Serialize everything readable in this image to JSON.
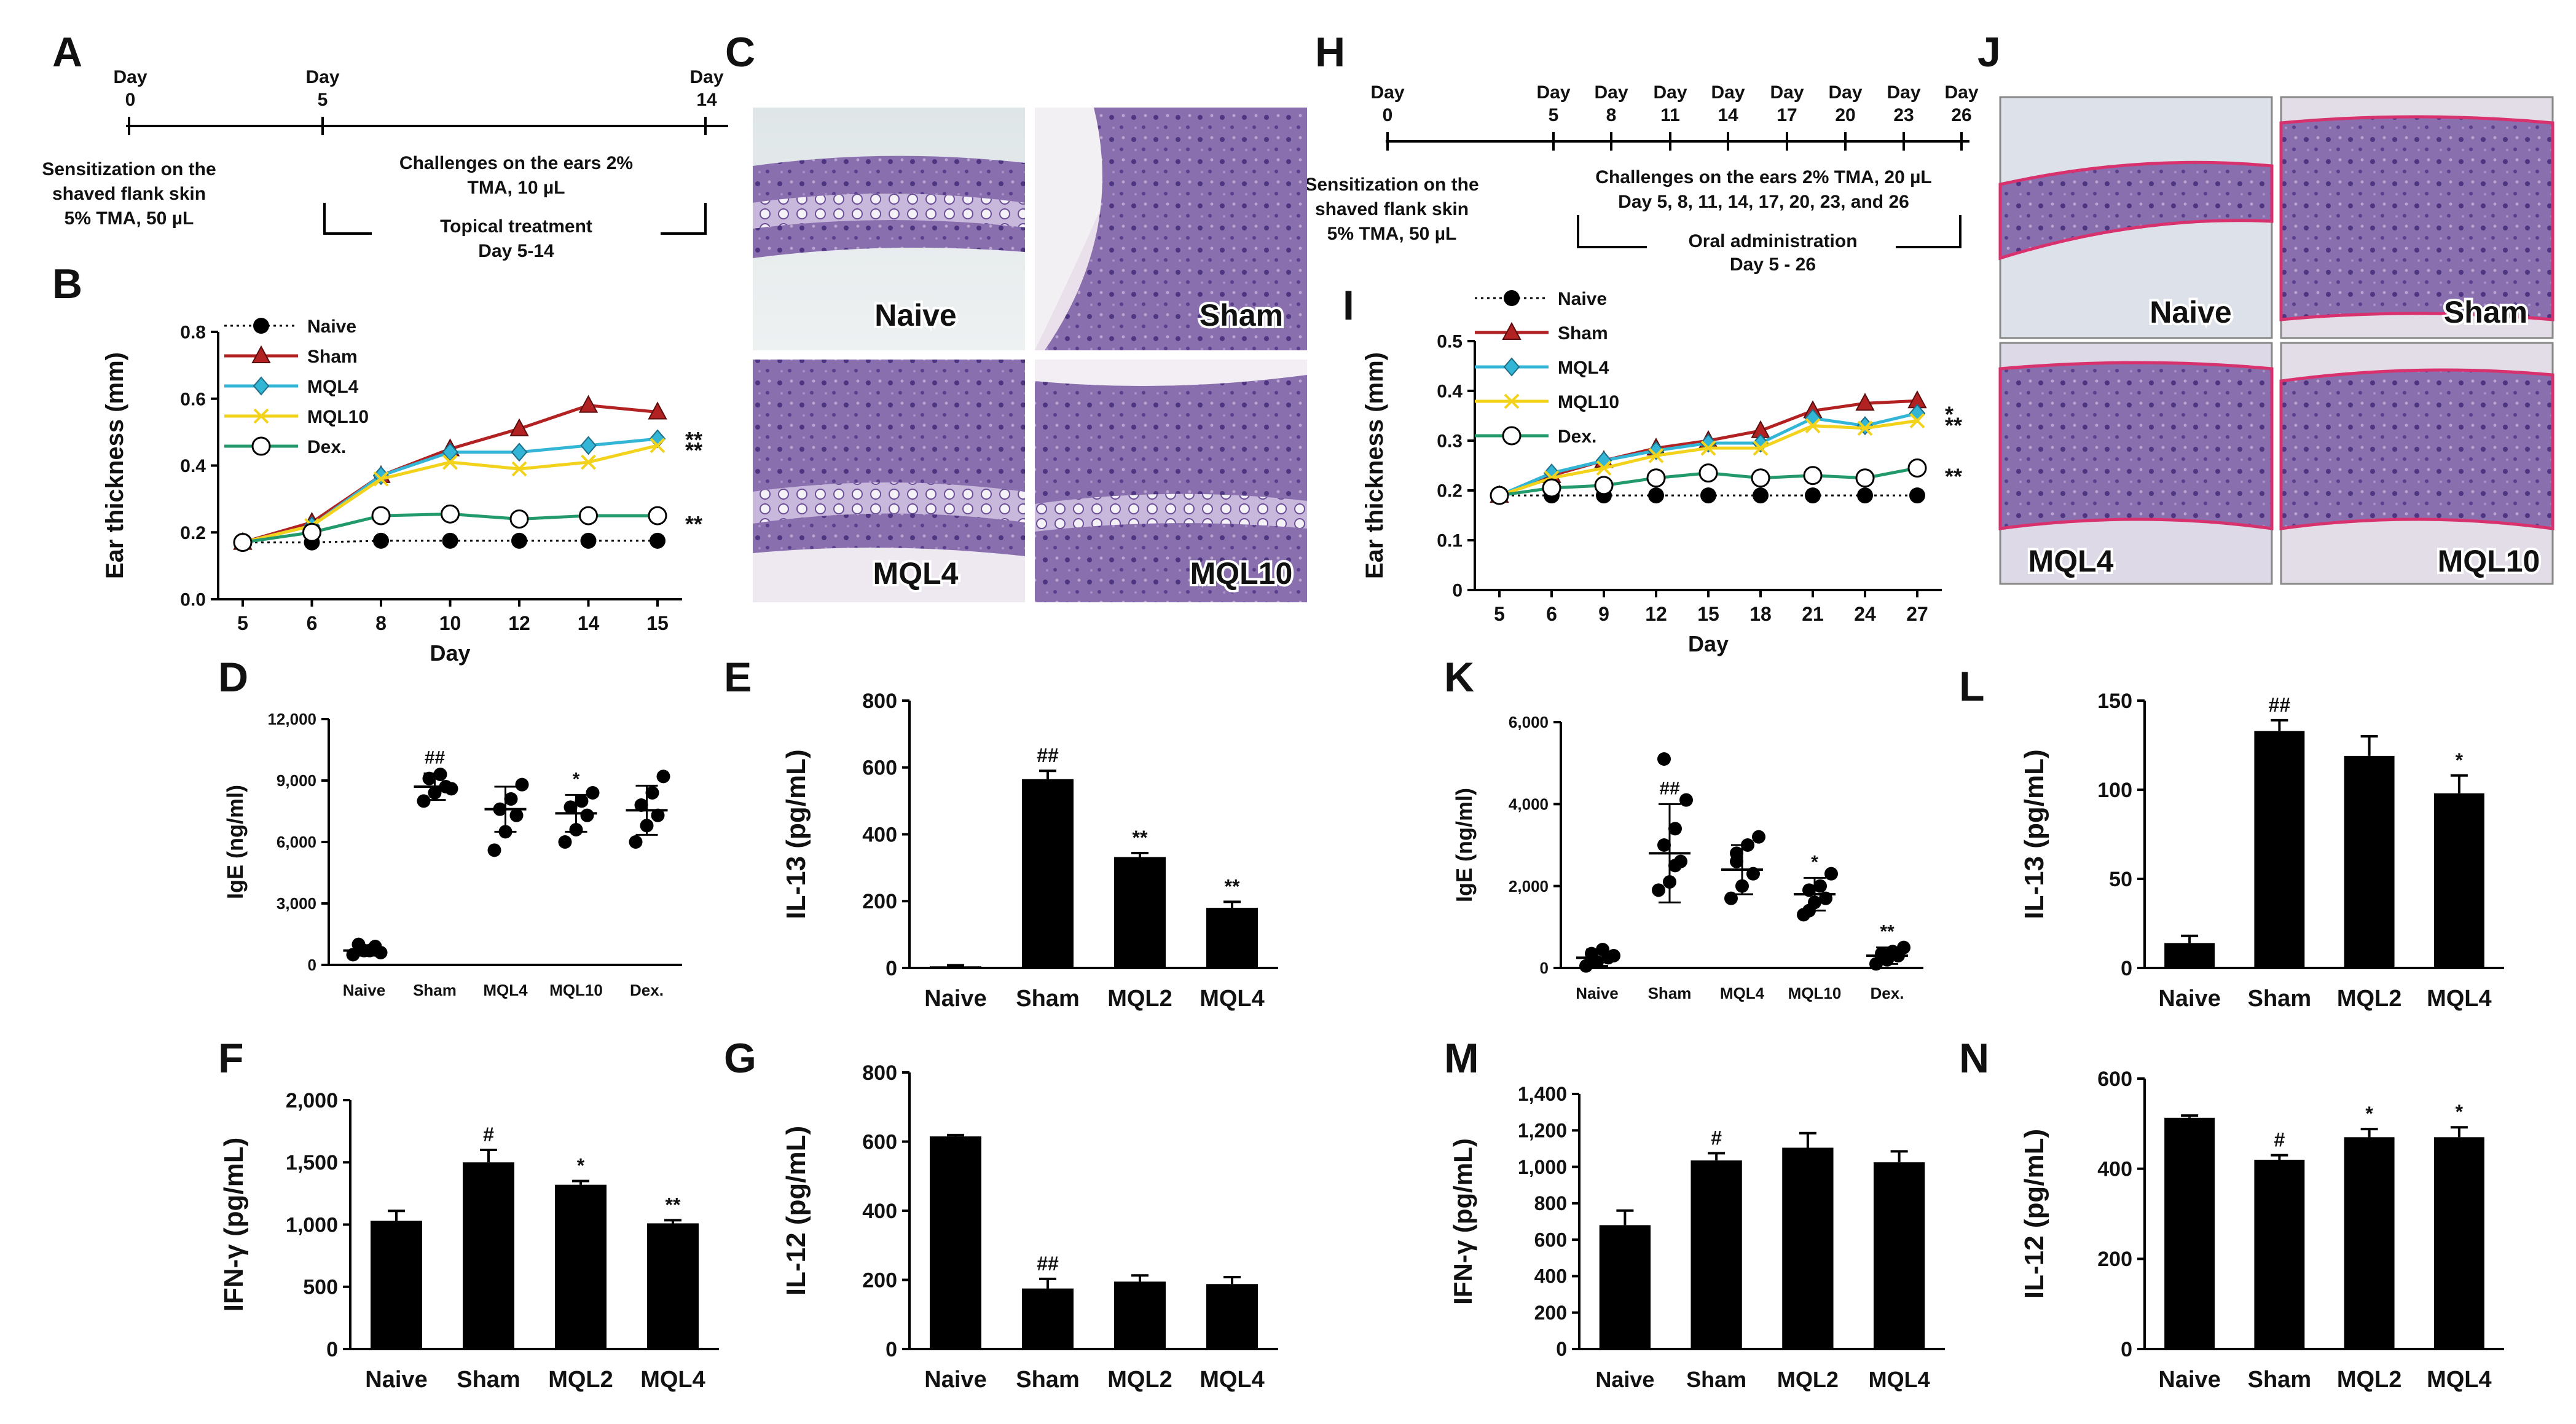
{
  "panel_letters": {
    "A": "A",
    "B": "B",
    "C": "C",
    "D": "D",
    "E": "E",
    "F": "F",
    "G": "G",
    "H": "H",
    "I": "I",
    "J": "J",
    "K": "K",
    "L": "L",
    "M": "M",
    "N": "N"
  },
  "histology": {
    "C": [
      "Naive",
      "Sham",
      "MQL4",
      "MQL10"
    ],
    "J": [
      "Naive",
      "Sham",
      "MQL4",
      "MQL10"
    ]
  },
  "timeline_A": {
    "days": [
      {
        "day": "Day",
        "num": "0"
      },
      {
        "day": "Day",
        "num": "5"
      },
      {
        "day": "Day",
        "num": "14"
      }
    ],
    "sensitization": [
      "Sensitization on the",
      "shaved flank skin",
      "5% TMA, 50 µL"
    ],
    "challenge": [
      "Challenges on the ears 2%",
      "TMA, 10 µL"
    ],
    "treatment": [
      "Topical treatment",
      "Day 5-14"
    ]
  },
  "timeline_H": {
    "days": [
      {
        "day": "Day",
        "num": "0"
      },
      {
        "day": "Day",
        "num": "5"
      },
      {
        "day": "Day",
        "num": "8"
      },
      {
        "day": "Day",
        "num": "11"
      },
      {
        "day": "Day",
        "num": "14"
      },
      {
        "day": "Day",
        "num": "17"
      },
      {
        "day": "Day",
        "num": "20"
      },
      {
        "day": "Day",
        "num": "23"
      },
      {
        "day": "Day",
        "num": "26"
      }
    ],
    "sensitization": [
      "Sensitization on the",
      "shaved flank skin",
      "5% TMA, 50 µL"
    ],
    "challenge": [
      "Challenges on the ears 2% TMA, 20 µL",
      "Day 5, 8, 11, 14, 17, 20, 23, and 26"
    ],
    "treatment": [
      "Oral administration",
      "Day 5 - 26"
    ]
  },
  "colors": {
    "naive": "#000000",
    "sham": "#b22222",
    "mql4": "#33b5d6",
    "mql10": "#f2d21b",
    "dex": "#239a6b"
  },
  "chart_data": [
    {
      "id": "B",
      "type": "line",
      "xlabel": "Day",
      "ylabel": "Ear thickness (mm)",
      "categories": [
        "5",
        "6",
        "8",
        "10",
        "12",
        "14",
        "15"
      ],
      "yticks": [
        "0.0",
        "0.2",
        "0.4",
        "0.6",
        "0.8"
      ],
      "ylim": [
        0,
        0.8
      ],
      "series": [
        {
          "name": "Naive",
          "values": [
            0.17,
            0.17,
            0.175,
            0.175,
            0.175,
            0.175,
            0.175
          ],
          "marker": "dot",
          "dashed": true,
          "color": "#000000"
        },
        {
          "name": "Sham",
          "values": [
            0.17,
            0.23,
            0.37,
            0.45,
            0.51,
            0.58,
            0.56
          ],
          "marker": "triangle",
          "color": "#b22222"
        },
        {
          "name": "MQL4",
          "values": [
            0.17,
            0.22,
            0.37,
            0.44,
            0.44,
            0.46,
            0.48
          ],
          "marker": "diamond",
          "color": "#33b5d6"
        },
        {
          "name": "MQL10",
          "values": [
            0.17,
            0.22,
            0.36,
            0.41,
            0.39,
            0.41,
            0.46
          ],
          "marker": "x",
          "color": "#f2d21b"
        },
        {
          "name": "Dex.",
          "values": [
            0.17,
            0.2,
            0.25,
            0.255,
            0.24,
            0.25,
            0.25
          ],
          "marker": "circle",
          "color": "#239a6b"
        }
      ],
      "annotations": [
        "**",
        "**",
        "**"
      ]
    },
    {
      "id": "I",
      "type": "line",
      "xlabel": "Day",
      "ylabel": "Ear thickness (mm)",
      "categories": [
        "5",
        "6",
        "9",
        "12",
        "15",
        "18",
        "21",
        "24",
        "27"
      ],
      "yticks": [
        "0",
        "0.1",
        "0.2",
        "0.3",
        "0.4",
        "0.5"
      ],
      "ylim": [
        0,
        0.5
      ],
      "series": [
        {
          "name": "Naive",
          "values": [
            0.19,
            0.19,
            0.19,
            0.19,
            0.19,
            0.19,
            0.19,
            0.19,
            0.19
          ],
          "marker": "dot",
          "dashed": true,
          "color": "#000000"
        },
        {
          "name": "Sham",
          "values": [
            0.19,
            0.23,
            0.26,
            0.285,
            0.3,
            0.32,
            0.36,
            0.375,
            0.38
          ],
          "marker": "triangle",
          "color": "#b22222"
        },
        {
          "name": "MQL4",
          "values": [
            0.19,
            0.235,
            0.26,
            0.28,
            0.295,
            0.295,
            0.345,
            0.33,
            0.355
          ],
          "marker": "diamond",
          "color": "#33b5d6"
        },
        {
          "name": "MQL10",
          "values": [
            0.19,
            0.225,
            0.245,
            0.27,
            0.285,
            0.285,
            0.33,
            0.325,
            0.34
          ],
          "marker": "x",
          "color": "#f2d21b"
        },
        {
          "name": "Dex.",
          "values": [
            0.19,
            0.205,
            0.21,
            0.225,
            0.235,
            0.225,
            0.23,
            0.225,
            0.245
          ],
          "marker": "circle",
          "color": "#239a6b"
        }
      ],
      "annotations": [
        "*",
        "**",
        "**"
      ]
    },
    {
      "id": "D",
      "type": "scatter",
      "ylabel": "IgE (ng/ml)",
      "categories": [
        "Naive",
        "Sham",
        "MQL4",
        "MQL10",
        "Dex."
      ],
      "yticks": [
        "0",
        "3,000",
        "6,000",
        "9,000",
        "12,000"
      ],
      "ylim": [
        0,
        12000
      ],
      "means": [
        700,
        8700,
        7600,
        7400,
        7550
      ],
      "sd": [
        250,
        650,
        1100,
        900,
        1200
      ],
      "points": [
        [
          500,
          700,
          900,
          1000,
          700,
          600
        ],
        [
          8000,
          8400,
          8700,
          9100,
          9300,
          8600
        ],
        [
          5600,
          6500,
          7300,
          7600,
          8100,
          8800
        ],
        [
          6000,
          6600,
          7300,
          7700,
          8000,
          8400
        ],
        [
          6000,
          6800,
          7300,
          7800,
          8400,
          9200
        ]
      ],
      "annotations": [
        "",
        "##",
        "",
        "*",
        ""
      ]
    },
    {
      "id": "K",
      "type": "scatter",
      "ylabel": "IgE (ng/ml)",
      "categories": [
        "Naive",
        "Sham",
        "MQL4",
        "MQL10",
        "Dex."
      ],
      "yticks": [
        "0",
        "2,000",
        "4,000",
        "6,000"
      ],
      "ylim": [
        0,
        6000
      ],
      "means": [
        250,
        2800,
        2400,
        1800,
        300
      ],
      "sd": [
        200,
        1200,
        600,
        400,
        200
      ],
      "points": [
        [
          50,
          150,
          250,
          350,
          450,
          300,
          200
        ],
        [
          1900,
          2100,
          2600,
          3000,
          3400,
          4100,
          5100,
          2500
        ],
        [
          1700,
          2000,
          2300,
          2600,
          3000,
          3200,
          2800
        ],
        [
          1300,
          1600,
          1700,
          1900,
          2000,
          2300,
          1400
        ],
        [
          100,
          200,
          300,
          350,
          400,
          500,
          250
        ]
      ],
      "annotations": [
        "",
        "##",
        "",
        "*",
        "**"
      ]
    },
    {
      "id": "E",
      "type": "bar",
      "ylabel": "IL-13 (pg/mL)",
      "categories": [
        "Naive",
        "Sham",
        "MQL2",
        "MQL4"
      ],
      "yticks": [
        "0",
        "200",
        "400",
        "600",
        "800"
      ],
      "ylim": [
        0,
        800
      ],
      "values": [
        5,
        565,
        332,
        180
      ],
      "err": [
        3,
        25,
        12,
        18
      ],
      "annotations": [
        "",
        "##",
        "**",
        "**"
      ]
    },
    {
      "id": "F",
      "type": "bar",
      "ylabel": "IFN-γ (pg/mL)",
      "categories": [
        "Naive",
        "Sham",
        "MQL2",
        "MQL4"
      ],
      "yticks": [
        "0",
        "500",
        "1,000",
        "1,500",
        "2,000"
      ],
      "ylim": [
        0,
        2000
      ],
      "values": [
        1030,
        1500,
        1320,
        1010
      ],
      "err": [
        80,
        100,
        30,
        25
      ],
      "annotations": [
        "",
        "#",
        "*",
        "**"
      ]
    },
    {
      "id": "G",
      "type": "bar",
      "ylabel": "IL-12 (pg/mL)",
      "categories": [
        "Naive",
        "Sham",
        "MQL2",
        "MQL4"
      ],
      "yticks": [
        "0",
        "200",
        "400",
        "600",
        "800"
      ],
      "ylim": [
        0,
        800
      ],
      "values": [
        615,
        175,
        195,
        188
      ],
      "err": [
        4,
        28,
        18,
        20
      ],
      "annotations": [
        "",
        "##",
        "",
        ""
      ]
    },
    {
      "id": "L",
      "type": "bar",
      "ylabel": "IL-13 (pg/mL)",
      "categories": [
        "Naive",
        "Sham",
        "MQL2",
        "MQL4"
      ],
      "yticks": [
        "0",
        "50",
        "100",
        "150"
      ],
      "ylim": [
        0,
        150
      ],
      "values": [
        14,
        133,
        119,
        98
      ],
      "err": [
        4,
        6,
        11,
        10
      ],
      "annotations": [
        "",
        "##",
        "",
        "*"
      ]
    },
    {
      "id": "M",
      "type": "bar",
      "ylabel": "IFN-γ (pg/mL)",
      "categories": [
        "Naive",
        "Sham",
        "MQL2",
        "MQL4"
      ],
      "yticks": [
        "0",
        "200",
        "400",
        "600",
        "800",
        "1,000",
        "1,200",
        "1,400"
      ],
      "ylim": [
        0,
        1400
      ],
      "values": [
        680,
        1035,
        1105,
        1025
      ],
      "err": [
        80,
        40,
        80,
        60
      ],
      "annotations": [
        "",
        "#",
        "",
        ""
      ]
    },
    {
      "id": "N",
      "type": "bar",
      "ylabel": "IL-12 (pg/mL)",
      "categories": [
        "Naive",
        "Sham",
        "MQL2",
        "MQL4"
      ],
      "yticks": [
        "0",
        "200",
        "400",
        "600"
      ],
      "ylim": [
        0,
        600
      ],
      "values": [
        513,
        420,
        470,
        470
      ],
      "err": [
        5,
        10,
        18,
        22
      ],
      "annotations": [
        "",
        "#",
        "*",
        "*"
      ]
    }
  ]
}
